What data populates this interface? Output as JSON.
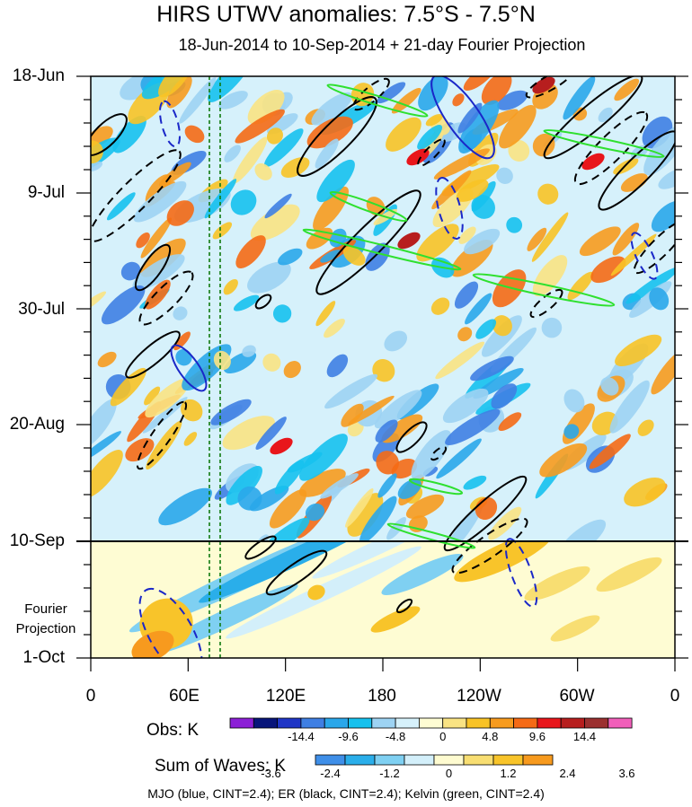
{
  "chart_data": {
    "type": "heatmap",
    "title": "HIRS UTWV anomalies: 7.5°S - 7.5°N",
    "subtitle": "18-Jun-2014 to 10-Sep-2014 + 21-day Fourier Projection",
    "y_ticks": [
      "18-Jun",
      "9-Jul",
      "30-Jul",
      "20-Aug",
      "10-Sep",
      "1-Oct"
    ],
    "x_ticks": [
      "0",
      "60E",
      "120E",
      "180",
      "120W",
      "60W",
      "0"
    ],
    "x_range_deg_east": [
      0,
      360
    ],
    "projection_note": [
      "Fourier",
      "Projection"
    ],
    "obs_legend": {
      "label": "Obs: K",
      "tick_labels": [
        "-14.4",
        "-9.6",
        "-4.8",
        "0",
        "4.8",
        "9.6",
        "14.4"
      ],
      "colors": [
        "#8c1fd6",
        "#08157a",
        "#1f35c6",
        "#3f7fe3",
        "#2aa7ea",
        "#16c1ee",
        "#9dd3f3",
        "#d6f1fb",
        "#fefcd3",
        "#f9e383",
        "#f8c326",
        "#f79b1e",
        "#f56a15",
        "#e8161b",
        "#b71e1e",
        "#9b3030",
        "#f15fba"
      ]
    },
    "sum_legend": {
      "label": "Sum of Waves: K",
      "tick_labels": [
        "-3.6",
        "-2.4",
        "-1.2",
        "0",
        "1.2",
        "2.4",
        "3.6"
      ],
      "colors": [
        "#3f8fe8",
        "#2aaeea",
        "#7fd0f2",
        "#d3effa",
        "#fefbd0",
        "#f8de72",
        "#f8c42a",
        "#f79a1e"
      ]
    },
    "contours_caption": "MJO (blue, CINT=2.4); ER (black, CINT=2.4); Kelvin (green, CINT=2.4)",
    "series": [
      {
        "name": "MJO",
        "color": "#1f2fd0"
      },
      {
        "name": "ER",
        "color": "#000000"
      },
      {
        "name": "Kelvin",
        "color": "#22dd22"
      }
    ]
  }
}
